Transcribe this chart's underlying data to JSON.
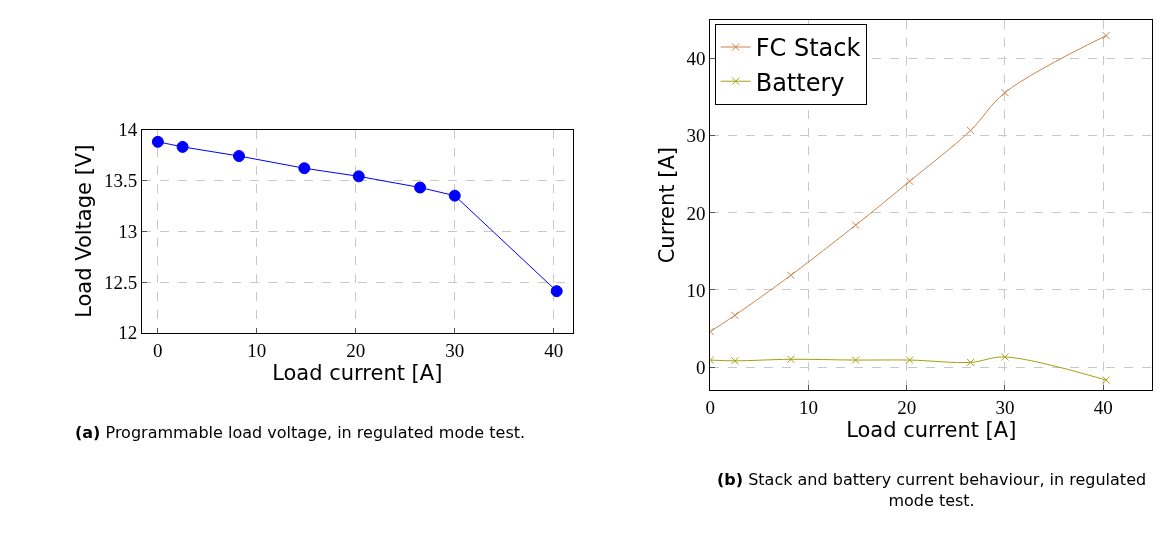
{
  "chart_data": [
    {
      "type": "line",
      "xlabel": "Load current [A]",
      "ylabel": "Load Voltage [V]",
      "x": [
        0,
        2.5,
        8.2,
        14.8,
        20.3,
        26.5,
        30,
        40.3
      ],
      "series": [
        {
          "color": "#0000ff",
          "values": [
            13.88,
            13.83,
            13.74,
            13.62,
            13.54,
            13.43,
            13.35,
            12.41
          ]
        }
      ],
      "xlim": [
        -1.6,
        41.9
      ],
      "xticks": [
        0,
        10,
        20,
        30,
        40
      ],
      "ylim": [
        12,
        14
      ],
      "yticks": [
        12,
        12.5,
        13,
        13.5,
        14
      ],
      "grid": true,
      "marker": "circle",
      "legend": false,
      "annotations": [
        "(a) Programmable load voltage, in regulated mode test."
      ]
    },
    {
      "type": "line",
      "xlabel": "Load current [A]",
      "ylabel": "Current [A]",
      "x": [
        0,
        2.5,
        8.2,
        14.8,
        20.3,
        26.5,
        30,
        40.3
      ],
      "series": [
        {
          "name": "FC Stack",
          "color": "#c8844a",
          "values": [
            4.6,
            6.7,
            11.9,
            18.4,
            24.1,
            30.7,
            35.6,
            43
          ]
        },
        {
          "name": "Battery",
          "color": "#a5a012",
          "values": [
            0.9,
            0.8,
            1.0,
            0.9,
            0.9,
            0.6,
            1.3,
            -1.7
          ]
        }
      ],
      "xlim": [
        0,
        45
      ],
      "xticks": [
        0,
        10,
        20,
        30,
        40
      ],
      "ylim": [
        -3,
        45
      ],
      "yticks": [
        0,
        10,
        20,
        30,
        40
      ],
      "grid": true,
      "marker": "cross",
      "legend": "top left",
      "annotations": [
        "(b) Stack and battery current behaviour, in regulated mode test."
      ]
    }
  ]
}
